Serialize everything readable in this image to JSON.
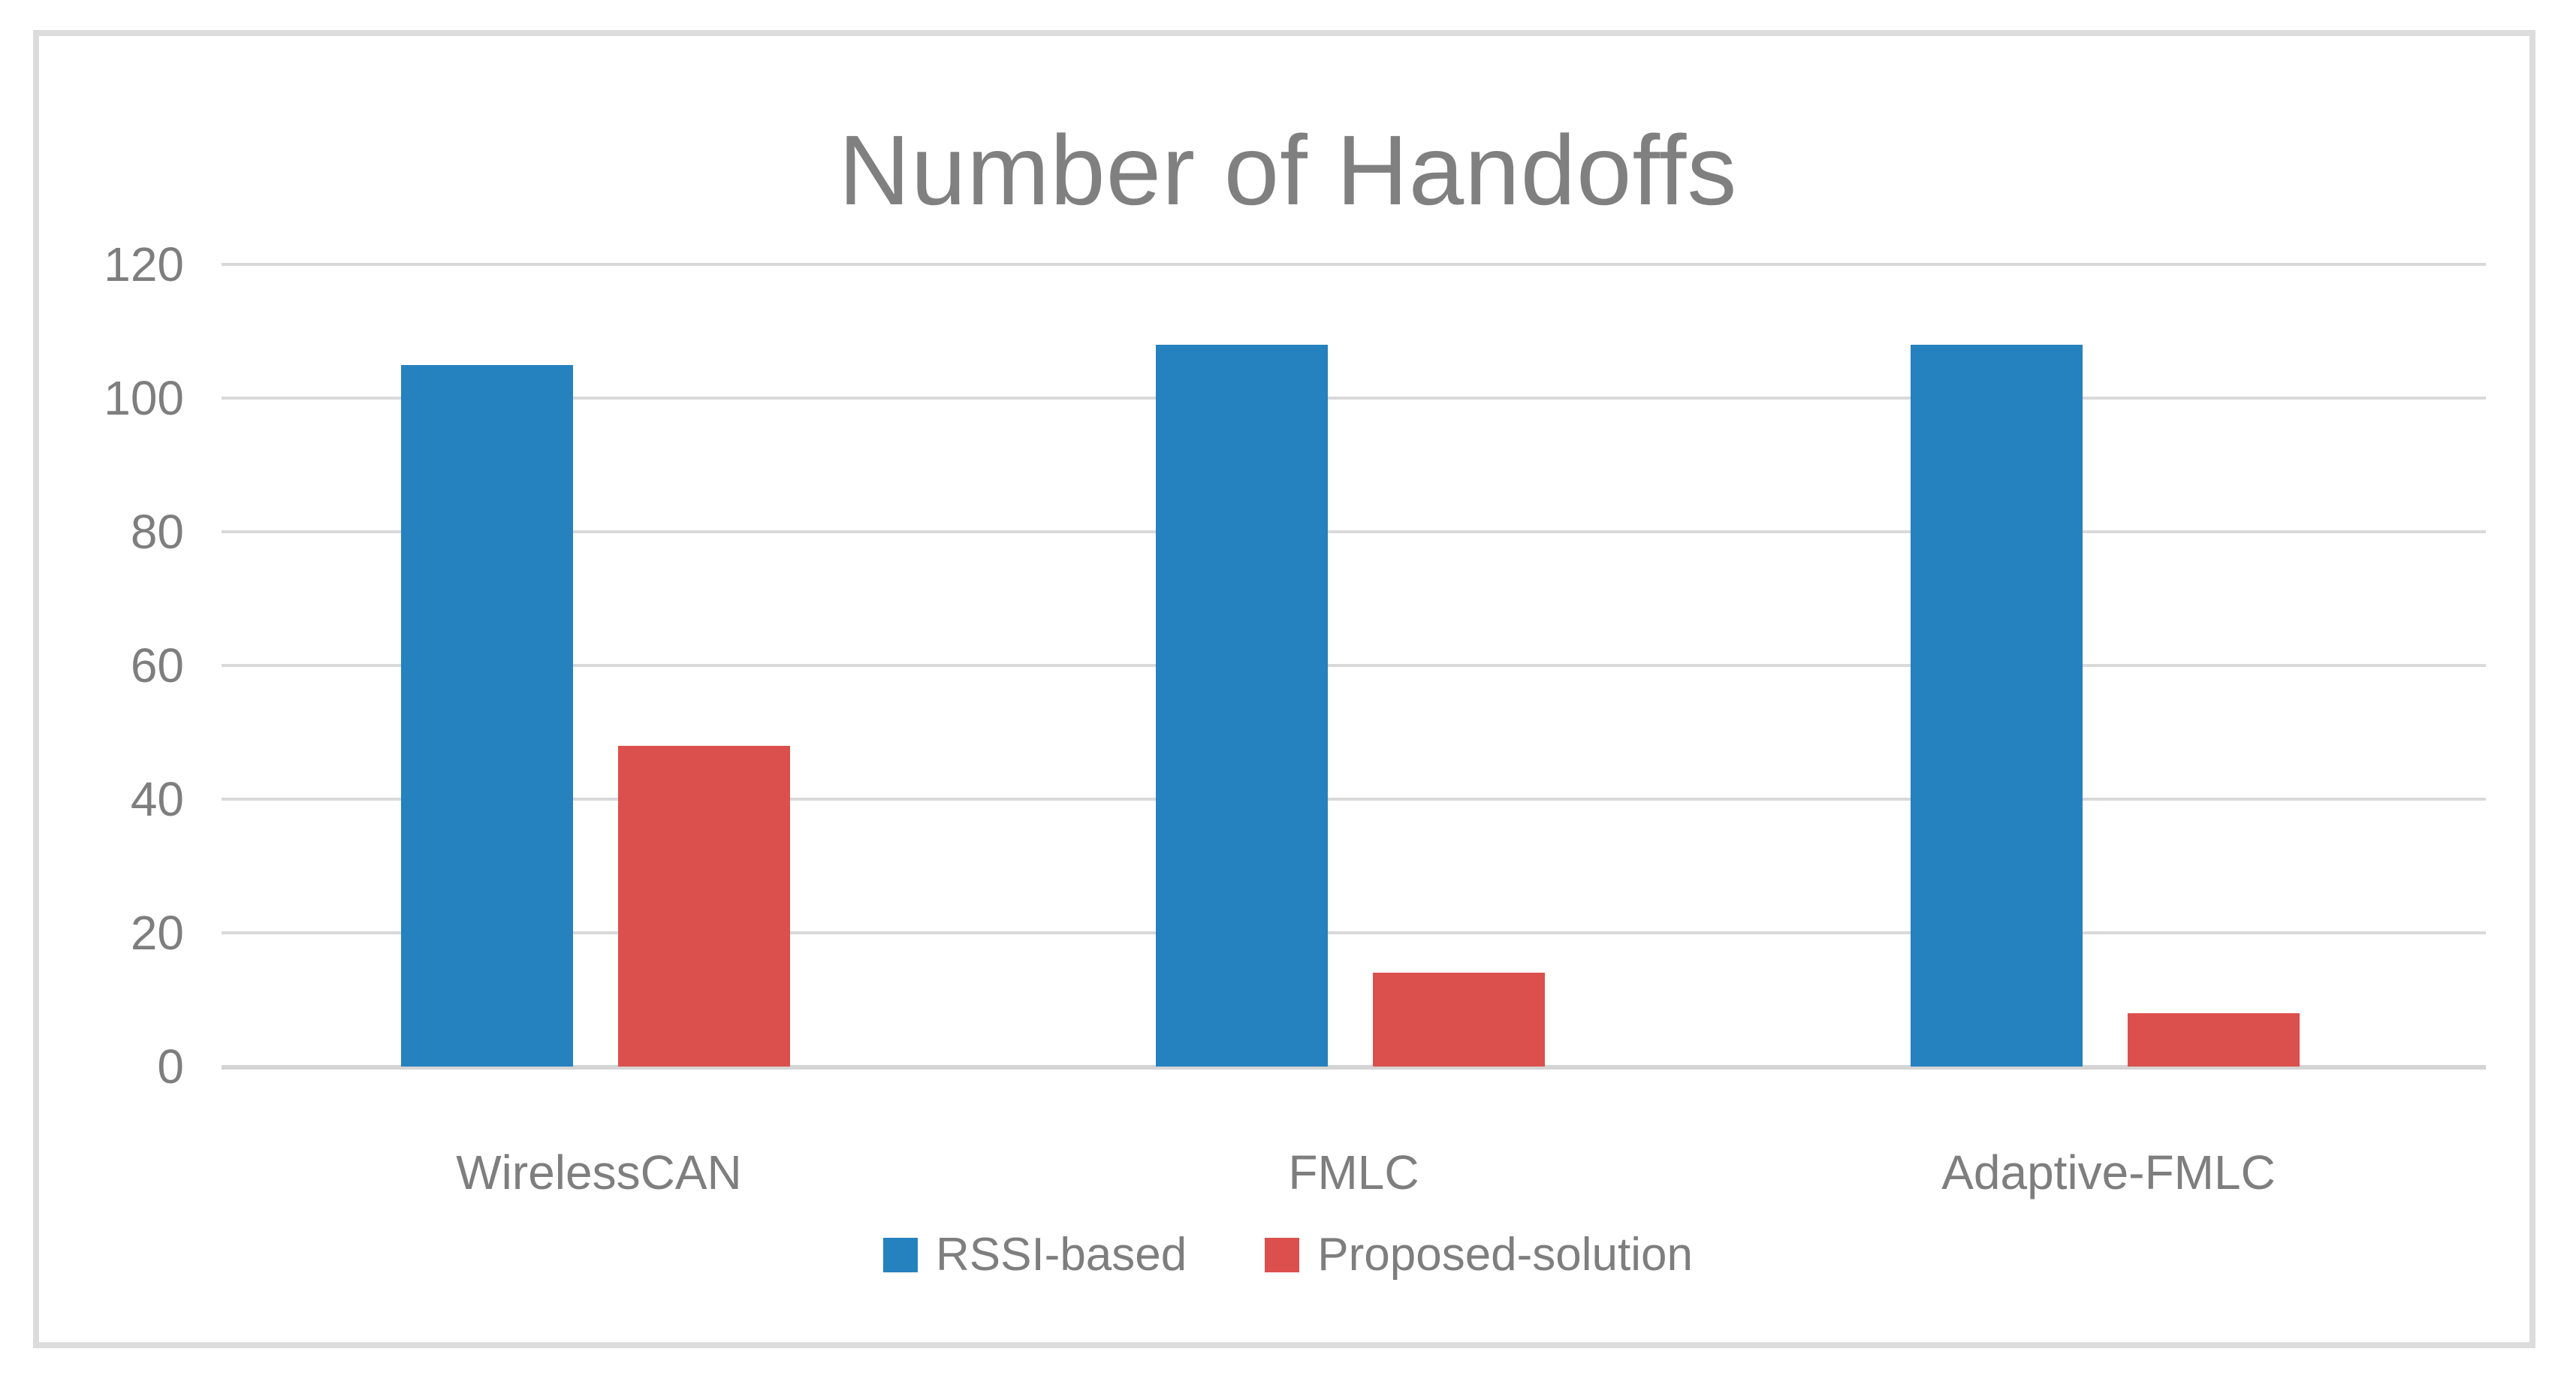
{
  "colors": {
    "background": "#FFFFFF",
    "frame_border": "#DCDCDC",
    "gridline": "#D9D9D9",
    "axis_line": "#D4D4D4",
    "text": "#7E7E7E",
    "title": "#808080"
  },
  "chart_data": {
    "type": "bar",
    "title": "Number of Handoffs",
    "categories": [
      "WirelessCAN",
      "FMLC",
      "Adaptive-FMLC"
    ],
    "series": [
      {
        "name": "RSSI-based",
        "color": "#2681BF",
        "values": [
          105,
          108,
          108
        ]
      },
      {
        "name": "Proposed-solution",
        "color": "#DB504D",
        "values": [
          48,
          14,
          8
        ]
      }
    ],
    "xlabel": "",
    "ylabel": "",
    "ylim": [
      0,
      120
    ],
    "yticks": [
      0,
      20,
      40,
      60,
      80,
      100,
      120
    ],
    "grid": true,
    "legend_position": "bottom"
  }
}
